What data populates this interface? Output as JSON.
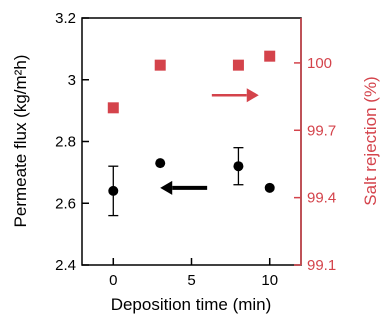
{
  "chart_data": {
    "type": "scatter",
    "xlabel": "Deposition time (min)",
    "ylabel": "Permeate flux (kg/m²h)",
    "y2label": "Salt rejection (%)",
    "xlim": [
      -2,
      12
    ],
    "ylim": [
      2.4,
      3.2
    ],
    "y2lim": [
      99.1,
      100.2
    ],
    "x_ticks": [
      0,
      5,
      10
    ],
    "y_ticks": [
      "2.4",
      "2.6",
      "2.8",
      "3",
      "3.2"
    ],
    "y2_ticks": [
      "99.1",
      "99.4",
      "99.7",
      "100"
    ],
    "grid": false,
    "colors": {
      "flux": "#000000",
      "rejection": "#d4434b"
    },
    "series": [
      {
        "axis": "left",
        "marker": "circle",
        "x": [
          0,
          3,
          8,
          10
        ],
        "y": [
          2.64,
          2.73,
          2.72,
          2.65
        ],
        "error": [
          0.08,
          null,
          0.06,
          null
        ]
      },
      {
        "axis": "right",
        "marker": "square",
        "x": [
          0,
          3,
          8,
          10
        ],
        "y": [
          99.8,
          99.99,
          99.99,
          100.03
        ]
      }
    ],
    "annotations": [
      {
        "type": "arrow",
        "direction": "left",
        "series": 0,
        "color": "#000000",
        "from": [
          6,
          2.65
        ],
        "to": [
          3,
          2.65
        ]
      },
      {
        "type": "arrow",
        "direction": "right",
        "series": 1,
        "color": "#d4434b",
        "from": [
          6.3,
          2.95
        ],
        "to": [
          9.3,
          2.95
        ]
      }
    ]
  }
}
